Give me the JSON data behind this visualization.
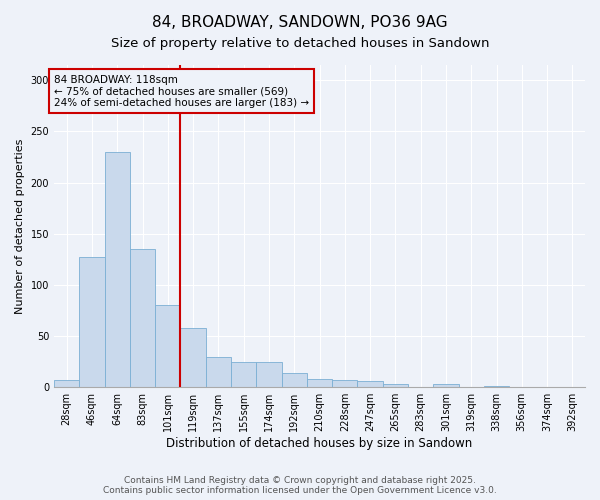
{
  "title": "84, BROADWAY, SANDOWN, PO36 9AG",
  "subtitle": "Size of property relative to detached houses in Sandown",
  "xlabel": "Distribution of detached houses by size in Sandown",
  "ylabel": "Number of detached properties",
  "categories": [
    "28sqm",
    "46sqm",
    "64sqm",
    "83sqm",
    "101sqm",
    "119sqm",
    "137sqm",
    "155sqm",
    "174sqm",
    "192sqm",
    "210sqm",
    "228sqm",
    "247sqm",
    "265sqm",
    "283sqm",
    "301sqm",
    "319sqm",
    "338sqm",
    "356sqm",
    "374sqm",
    "392sqm"
  ],
  "values": [
    7,
    127,
    230,
    135,
    80,
    58,
    30,
    25,
    25,
    14,
    8,
    7,
    6,
    3,
    0,
    3,
    0,
    1,
    0,
    0,
    0
  ],
  "bar_color": "#c9d9ec",
  "bar_edge_color": "#7bafd4",
  "vline_x_index": 5,
  "vline_color": "#cc0000",
  "annotation_box_text": "84 BROADWAY: 118sqm\n← 75% of detached houses are smaller (569)\n24% of semi-detached houses are larger (183) →",
  "annotation_fontsize": 7.5,
  "box_edge_color": "#cc0000",
  "ylim": [
    0,
    315
  ],
  "yticks": [
    0,
    50,
    100,
    150,
    200,
    250,
    300
  ],
  "background_color": "#eef2f9",
  "grid_color": "#ffffff",
  "footer_text": "Contains HM Land Registry data © Crown copyright and database right 2025.\nContains public sector information licensed under the Open Government Licence v3.0.",
  "title_fontsize": 11,
  "subtitle_fontsize": 9.5,
  "xlabel_fontsize": 8.5,
  "ylabel_fontsize": 8,
  "tick_fontsize": 7,
  "footer_fontsize": 6.5
}
